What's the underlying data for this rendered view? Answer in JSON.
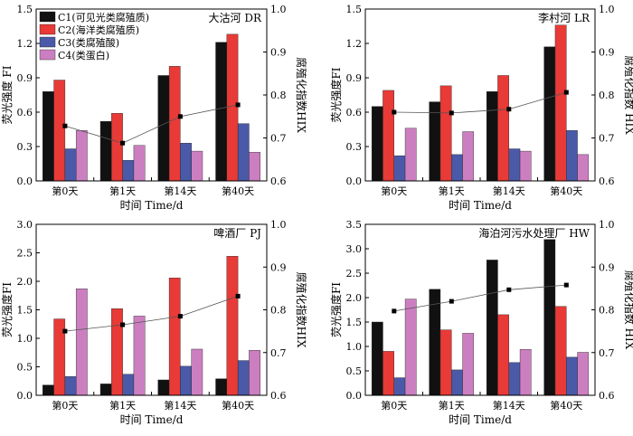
{
  "chart_data": [
    {
      "type": "bar",
      "title": "大沽河 DR",
      "xlabel": "时间 Time/d",
      "ylabel": "荧光强度 FI",
      "ylabel2": "腐殖化指数HIX",
      "ylim": [
        0,
        1.5
      ],
      "yticks": [
        "0.0",
        "0.3",
        "0.6",
        "0.9",
        "1.2",
        "1.5"
      ],
      "y2lim": [
        0.6,
        1.0
      ],
      "y2ticks": [
        "0.6",
        "0.7",
        "0.8",
        "0.9",
        "1.0"
      ],
      "categories": [
        "第0天",
        "第1天",
        "第14天",
        "第40天"
      ],
      "series": [
        {
          "name": "C1(可见光类腐殖质)",
          "values": [
            0.78,
            0.52,
            0.92,
            1.21
          ]
        },
        {
          "name": "C2(海洋类腐殖质)",
          "values": [
            0.88,
            0.59,
            1.0,
            1.28
          ]
        },
        {
          "name": "C3(类腐殖酸)",
          "values": [
            0.28,
            0.18,
            0.33,
            0.5
          ]
        },
        {
          "name": "C4(类蛋白)",
          "values": [
            0.44,
            0.31,
            0.26,
            0.25
          ]
        }
      ],
      "hix": [
        0.728,
        0.688,
        0.75,
        0.777
      ]
    },
    {
      "type": "bar",
      "title": "李村河 LR",
      "xlabel": "时间 Time/d",
      "ylabel": "荧光强度FI",
      "ylabel2": "腐殖化指数 HIX",
      "ylim": [
        0,
        1.5
      ],
      "yticks": [
        "0.0",
        "0.3",
        "0.6",
        "0.9",
        "1.2",
        "1.5"
      ],
      "y2lim": [
        0.6,
        1.0
      ],
      "y2ticks": [
        "0.6",
        "0.7",
        "0.8",
        "0.9",
        "1.0"
      ],
      "categories": [
        "第0天",
        "第1天",
        "第14天",
        "第40天"
      ],
      "series": [
        {
          "name": "C1",
          "values": [
            0.65,
            0.69,
            0.78,
            1.17
          ]
        },
        {
          "name": "C2",
          "values": [
            0.79,
            0.83,
            0.92,
            1.36
          ]
        },
        {
          "name": "C3",
          "values": [
            0.22,
            0.23,
            0.28,
            0.44
          ]
        },
        {
          "name": "C4",
          "values": [
            0.46,
            0.43,
            0.26,
            0.23
          ]
        }
      ],
      "hix": [
        0.76,
        0.758,
        0.767,
        0.806
      ]
    },
    {
      "type": "bar",
      "title": "啤酒厂 PJ",
      "xlabel": "时间 Time/d",
      "ylabel": "荧光强度FI",
      "ylabel2": "腐殖化指数HIX",
      "ylim": [
        0,
        3.0
      ],
      "yticks": [
        "0.0",
        "0.5",
        "1.0",
        "1.5",
        "2.0",
        "2.5",
        "3.0"
      ],
      "y2lim": [
        0.6,
        1.0
      ],
      "y2ticks": [
        "0.6",
        "0.7",
        "0.8",
        "0.9",
        "1.0"
      ],
      "categories": [
        "第0天",
        "第1天",
        "第14天",
        "第40天"
      ],
      "series": [
        {
          "name": "C1",
          "values": [
            0.18,
            0.2,
            0.27,
            0.29
          ]
        },
        {
          "name": "C2",
          "values": [
            1.34,
            1.52,
            2.06,
            2.44
          ]
        },
        {
          "name": "C3",
          "values": [
            0.33,
            0.37,
            0.51,
            0.61
          ]
        },
        {
          "name": "C4",
          "values": [
            1.87,
            1.39,
            0.81,
            0.79
          ]
        }
      ],
      "hix": [
        0.75,
        0.765,
        0.785,
        0.832
      ]
    },
    {
      "type": "bar",
      "title": "海泊河污水处理厂 HW",
      "xlabel": "时间 Time/d",
      "ylabel": "荧光强度FI",
      "ylabel2": "腐殖化指数 HIX",
      "ylim": [
        0,
        3.5
      ],
      "yticks": [
        "0.0",
        "0.5",
        "1.0",
        "1.5",
        "2.0",
        "2.5",
        "3.0",
        "3.5"
      ],
      "y2lim": [
        0.6,
        1.0
      ],
      "y2ticks": [
        "0.6",
        "0.7",
        "0.8",
        "0.9",
        "1.0"
      ],
      "categories": [
        "第0天",
        "第1天",
        "第14天",
        "第40天"
      ],
      "series": [
        {
          "name": "C1",
          "values": [
            1.5,
            2.17,
            2.77,
            3.19
          ]
        },
        {
          "name": "C2",
          "values": [
            0.9,
            1.34,
            1.65,
            1.82
          ]
        },
        {
          "name": "C3",
          "values": [
            0.36,
            0.52,
            0.67,
            0.78
          ]
        },
        {
          "name": "C4",
          "values": [
            1.97,
            1.27,
            0.94,
            0.88
          ]
        }
      ],
      "hix": [
        0.797,
        0.82,
        0.847,
        0.858
      ]
    }
  ],
  "colors": [
    "#111111",
    "#e83a36",
    "#4a5aa8",
    "#cc7fc0"
  ]
}
